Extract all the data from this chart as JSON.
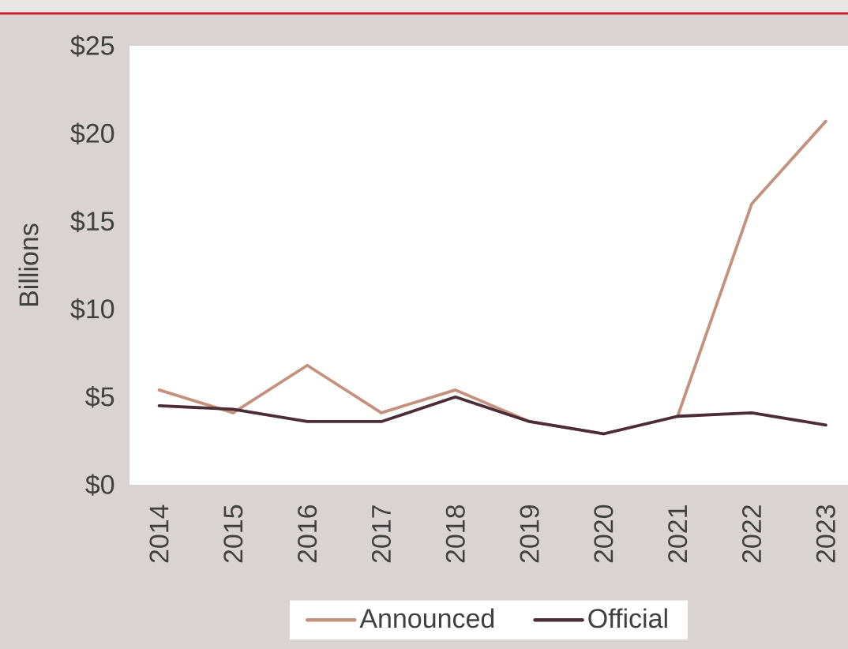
{
  "chart_data": {
    "type": "line",
    "ylabel": "Billions",
    "categories": [
      "2014",
      "2015",
      "2016",
      "2017",
      "2018",
      "2019",
      "2020",
      "2021",
      "2022",
      "2023"
    ],
    "series": [
      {
        "name": "Announced",
        "color": "#c4917f",
        "values": [
          5.4,
          4.1,
          6.8,
          4.1,
          5.4,
          3.6,
          2.9,
          3.9,
          16.0,
          20.7
        ]
      },
      {
        "name": "Official",
        "color": "#4b2d37",
        "values": [
          4.5,
          4.3,
          3.6,
          3.6,
          5.0,
          3.6,
          2.9,
          3.9,
          4.1,
          3.4
        ]
      }
    ],
    "ylim": [
      0,
      25
    ],
    "yticks": [
      {
        "value": 0,
        "label": "$0"
      },
      {
        "value": 5,
        "label": "$5"
      },
      {
        "value": 10,
        "label": "$10"
      },
      {
        "value": 15,
        "label": "$15"
      },
      {
        "value": 20,
        "label": "$20"
      },
      {
        "value": 25,
        "label": "$25"
      }
    ],
    "legend": "bottom",
    "line_style": "solid"
  }
}
